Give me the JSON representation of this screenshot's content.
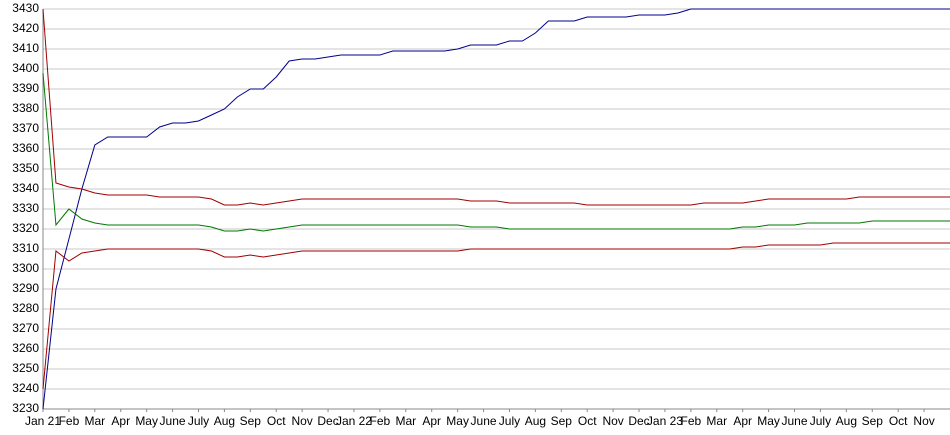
{
  "chart_data": {
    "type": "line",
    "x": [
      0,
      0.5,
      1,
      1.5,
      2,
      2.5,
      3,
      3.5,
      4,
      4.5,
      5,
      5.5,
      6,
      6.5,
      7,
      7.5,
      8,
      8.5,
      9,
      9.5,
      10,
      10.5,
      11,
      11.5,
      12,
      12.5,
      13,
      13.5,
      14,
      14.5,
      15,
      15.5,
      16,
      16.5,
      17,
      17.5,
      18,
      18.5,
      19,
      19.5,
      20,
      20.5,
      21,
      21.5,
      22,
      22.5,
      23,
      23.5,
      24,
      24.5,
      25,
      25.5,
      26,
      26.5,
      27,
      27.5,
      28,
      28.5,
      29,
      29.5,
      30,
      30.5,
      31,
      31.5,
      32,
      32.5,
      33,
      33.5,
      34,
      34.5,
      35
    ],
    "xlim": [
      0,
      35
    ],
    "xticks": [
      {
        "value": 0,
        "label": "Jan 21"
      },
      {
        "value": 1,
        "label": "Feb"
      },
      {
        "value": 2,
        "label": "Mar"
      },
      {
        "value": 3,
        "label": "Apr"
      },
      {
        "value": 4,
        "label": "May"
      },
      {
        "value": 5,
        "label": "June"
      },
      {
        "value": 6,
        "label": "July"
      },
      {
        "value": 7,
        "label": "Aug"
      },
      {
        "value": 8,
        "label": "Sep"
      },
      {
        "value": 9,
        "label": "Oct"
      },
      {
        "value": 10,
        "label": "Nov"
      },
      {
        "value": 11,
        "label": "Dec"
      },
      {
        "value": 12,
        "label": "Jan 22"
      },
      {
        "value": 13,
        "label": "Feb"
      },
      {
        "value": 14,
        "label": "Mar"
      },
      {
        "value": 15,
        "label": "Apr"
      },
      {
        "value": 16,
        "label": "May"
      },
      {
        "value": 17,
        "label": "June"
      },
      {
        "value": 18,
        "label": "July"
      },
      {
        "value": 19,
        "label": "Aug"
      },
      {
        "value": 20,
        "label": "Sep"
      },
      {
        "value": 21,
        "label": "Oct"
      },
      {
        "value": 22,
        "label": "Nov"
      },
      {
        "value": 23,
        "label": "Dec"
      },
      {
        "value": 24,
        "label": "Jan 23"
      },
      {
        "value": 25,
        "label": "Feb"
      },
      {
        "value": 26,
        "label": "Mar"
      },
      {
        "value": 27,
        "label": "Apr"
      },
      {
        "value": 28,
        "label": "May"
      },
      {
        "value": 29,
        "label": "June"
      },
      {
        "value": 30,
        "label": "July"
      },
      {
        "value": 31,
        "label": "Aug"
      },
      {
        "value": 32,
        "label": "Sep"
      },
      {
        "value": 33,
        "label": "Oct"
      },
      {
        "value": 34,
        "label": "Nov"
      }
    ],
    "ylim": [
      3230,
      3430
    ],
    "yticks": [
      3230,
      3240,
      3250,
      3260,
      3270,
      3280,
      3290,
      3300,
      3310,
      3320,
      3330,
      3340,
      3350,
      3360,
      3370,
      3380,
      3390,
      3400,
      3410,
      3420,
      3430
    ],
    "grid": true,
    "series": [
      {
        "color": "#00008b",
        "values": [
          3230,
          3290,
          3315,
          3340,
          3362,
          3366,
          3366,
          3366,
          3366,
          3371,
          3373,
          3373,
          3374,
          3377,
          3380,
          3386,
          3390,
          3390,
          3396,
          3404,
          3405,
          3405,
          3406,
          3407,
          3407,
          3407,
          3407,
          3409,
          3409,
          3409,
          3409,
          3409,
          3410,
          3412,
          3412,
          3412,
          3414,
          3414,
          3418,
          3424,
          3424,
          3424,
          3426,
          3426,
          3426,
          3426,
          3427,
          3427,
          3427,
          3428,
          3430,
          3430,
          3430,
          3430,
          3430,
          3430,
          3430,
          3430,
          3430,
          3430,
          3430,
          3430,
          3430,
          3430,
          3430,
          3430,
          3430,
          3430,
          3430,
          3430,
          3430
        ]
      },
      {
        "color": "#a00000",
        "values": [
          3430,
          3343,
          3341,
          3340,
          3338,
          3337,
          3337,
          3337,
          3337,
          3336,
          3336,
          3336,
          3336,
          3335,
          3332,
          3332,
          3333,
          3332,
          3333,
          3334,
          3335,
          3335,
          3335,
          3335,
          3335,
          3335,
          3335,
          3335,
          3335,
          3335,
          3335,
          3335,
          3335,
          3334,
          3334,
          3334,
          3333,
          3333,
          3333,
          3333,
          3333,
          3333,
          3332,
          3332,
          3332,
          3332,
          3332,
          3332,
          3332,
          3332,
          3332,
          3333,
          3333,
          3333,
          3333,
          3334,
          3335,
          3335,
          3335,
          3335,
          3335,
          3335,
          3335,
          3336,
          3336,
          3336,
          3336,
          3336,
          3336,
          3336,
          3336
        ]
      },
      {
        "color": "#007700",
        "values": [
          3398,
          3322,
          3330,
          3325,
          3323,
          3322,
          3322,
          3322,
          3322,
          3322,
          3322,
          3322,
          3322,
          3321,
          3319,
          3319,
          3320,
          3319,
          3320,
          3321,
          3322,
          3322,
          3322,
          3322,
          3322,
          3322,
          3322,
          3322,
          3322,
          3322,
          3322,
          3322,
          3322,
          3321,
          3321,
          3321,
          3320,
          3320,
          3320,
          3320,
          3320,
          3320,
          3320,
          3320,
          3320,
          3320,
          3320,
          3320,
          3320,
          3320,
          3320,
          3320,
          3320,
          3320,
          3321,
          3321,
          3322,
          3322,
          3322,
          3323,
          3323,
          3323,
          3323,
          3323,
          3324,
          3324,
          3324,
          3324,
          3324,
          3324,
          3324
        ]
      },
      {
        "color": "#a00000",
        "values": [
          3240,
          3309,
          3304,
          3308,
          3309,
          3310,
          3310,
          3310,
          3310,
          3310,
          3310,
          3310,
          3310,
          3309,
          3306,
          3306,
          3307,
          3306,
          3307,
          3308,
          3309,
          3309,
          3309,
          3309,
          3309,
          3309,
          3309,
          3309,
          3309,
          3309,
          3309,
          3309,
          3309,
          3310,
          3310,
          3310,
          3310,
          3310,
          3310,
          3310,
          3310,
          3310,
          3310,
          3310,
          3310,
          3310,
          3310,
          3310,
          3310,
          3310,
          3310,
          3310,
          3310,
          3310,
          3311,
          3311,
          3312,
          3312,
          3312,
          3312,
          3312,
          3313,
          3313,
          3313,
          3313,
          3313,
          3313,
          3313,
          3313,
          3313,
          3313
        ]
      }
    ]
  }
}
